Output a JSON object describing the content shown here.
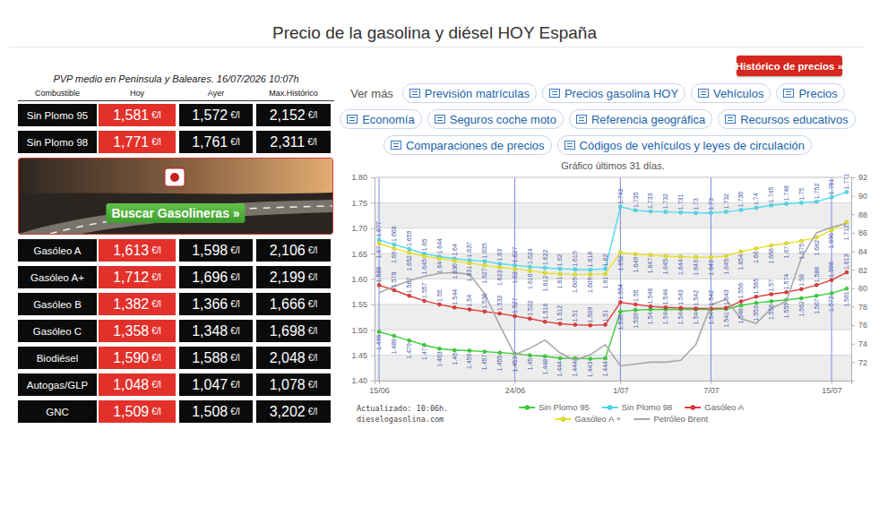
{
  "header": {
    "title": "Precio de la gasolina y diésel HOY España"
  },
  "price_table": {
    "caption": "PVP medio en Peninsula y Baleares. 16/07/2026 10:07h",
    "columns": [
      "Combustible",
      "Hoy",
      "Ayer",
      "Max.Histórico"
    ],
    "unit": "€/l",
    "rows": [
      {
        "fuel": "Sin Plomo 95",
        "today": "1,581",
        "yesterday": "1,572",
        "max": "2,152"
      },
      {
        "fuel": "Sin Plomo 98",
        "today": "1,771",
        "yesterday": "1,761",
        "max": "2,311"
      },
      {
        "fuel": "Gasóleo A",
        "today": "1,613",
        "yesterday": "1,598",
        "max": "2,106"
      },
      {
        "fuel": "Gasóleo A+",
        "today": "1,712",
        "yesterday": "1,696",
        "max": "2,199"
      },
      {
        "fuel": "Gasóleo B",
        "today": "1,382",
        "yesterday": "1,366",
        "max": "1,666"
      },
      {
        "fuel": "Gasóleo C",
        "today": "1,358",
        "yesterday": "1,348",
        "max": "1,698"
      },
      {
        "fuel": "Biodiésel",
        "today": "1,590",
        "yesterday": "1,588",
        "max": "2,048"
      },
      {
        "fuel": "Autogas/GLP",
        "today": "1,048",
        "yesterday": "1,047",
        "max": "1,078"
      },
      {
        "fuel": "GNC",
        "today": "1,509",
        "yesterday": "1,508",
        "max": "3,202"
      }
    ]
  },
  "banner": {
    "button": "Buscar Gasolineras »"
  },
  "history_button": "Histórico de precios »",
  "links": {
    "label": "Ver más",
    "rows": [
      [
        "Previsión matrículas",
        "Precios gasolina HOY",
        "Vehículos",
        "Precios"
      ],
      [
        "Economía",
        "Seguros coche moto",
        "Referencia geográfica",
        "Recursos educativos"
      ],
      [
        "Comparaciones de precios",
        "Códigos de vehículos y leyes de circulación"
      ]
    ]
  },
  "chart_data": {
    "type": "line",
    "title": "Gráfico últimos 31 días.",
    "categories": [
      "15/06",
      null,
      null,
      null,
      null,
      null,
      null,
      null,
      null,
      "24/06",
      null,
      null,
      null,
      null,
      null,
      null,
      "1/07",
      null,
      null,
      null,
      null,
      null,
      "7/07",
      null,
      null,
      null,
      null,
      null,
      null,
      null,
      "15/07",
      null
    ],
    "ylim": [
      1.4,
      1.8
    ],
    "yticks": [
      {
        "value": 1.4,
        "label": "1.40"
      },
      1.45,
      {
        "value": 1.5,
        "label": "1.50"
      },
      1.55,
      {
        "value": 1.6,
        "label": "1.60"
      },
      1.65,
      {
        "value": 1.7,
        "label": "1.70"
      },
      1.75,
      {
        "value": 1.8,
        "label": "1.80"
      }
    ],
    "y2lim": [
      70,
      92
    ],
    "y2ticks": [
      72,
      74,
      76,
      78,
      80,
      82,
      84,
      86,
      88,
      90,
      92
    ],
    "grid": true,
    "legend": "bottom",
    "series": [
      {
        "name": "Sin Plomo 95",
        "color": "#3ccf3c",
        "marker": "circle",
        "data_labels": true,
        "values": [
          1.496,
          1.488,
          1.479,
          1.47,
          1.463,
          1.46,
          1.459,
          1.457,
          1.455,
          1.453,
          1.45,
          1.448,
          1.444,
          1.444,
          1.443,
          1.444,
          1.536,
          1.539,
          1.54,
          1.54,
          1.54,
          1.54,
          1.54,
          1.541,
          1.548,
          1.553,
          1.556,
          1.559,
          1.562,
          1.567,
          1.572,
          1.581
        ]
      },
      {
        "name": "Sin Plomo 98",
        "color": "#4fdcee",
        "marker": "circle",
        "data_labels": true,
        "values": [
          1.677,
          1.668,
          1.659,
          1.65,
          1.644,
          1.64,
          1.637,
          1.635,
          1.63,
          1.627,
          1.624,
          1.622,
          1.62,
          1.619,
          1.618,
          1.62,
          1.742,
          1.735,
          1.733,
          1.732,
          1.731,
          1.73,
          1.73,
          1.732,
          1.736,
          1.74,
          1.745,
          1.748,
          1.75,
          1.752,
          1.761,
          1.771
        ]
      },
      {
        "name": "Gasóleo A",
        "color": "#e03b3b",
        "marker": "circle",
        "data_labels": true,
        "values": [
          1.588,
          1.578,
          1.567,
          1.557,
          1.55,
          1.544,
          1.54,
          1.536,
          1.532,
          1.527,
          1.522,
          1.516,
          1.512,
          1.51,
          1.509,
          1.51,
          1.554,
          1.55,
          1.546,
          1.544,
          1.543,
          1.542,
          1.542,
          1.543,
          1.556,
          1.565,
          1.57,
          1.574,
          1.58,
          1.588,
          1.598,
          1.613
        ]
      },
      {
        "name": "Gasóleo A +",
        "color": "#e6e22a",
        "marker": "circle",
        "data_labels": true,
        "values": [
          1.67,
          1.66,
          1.652,
          1.645,
          1.64,
          1.636,
          1.631,
          1.627,
          1.623,
          1.62,
          1.616,
          1.612,
          1.61,
          1.609,
          1.609,
          1.61,
          1.652,
          1.649,
          1.647,
          1.645,
          1.644,
          1.643,
          1.643,
          1.645,
          1.654,
          1.66,
          1.666,
          1.67,
          1.675,
          1.682,
          1.696,
          1.712
        ]
      },
      {
        "name": "Petróleo Brent",
        "color": "#a8a8a8",
        "marker": "none",
        "data_labels": false,
        "axis": "y2",
        "values": [
          79.5,
          80.2,
          80.8,
          81.3,
          81.6,
          81.7,
          81.5,
          79.4,
          76.0,
          72.8,
          73.5,
          74.4,
          73.0,
          72.2,
          72.8,
          73.9,
          71.6,
          71.8,
          72.0,
          72.0,
          72.2,
          73.9,
          78.2,
          78.8,
          76.7,
          76.2,
          77.8,
          78.6,
          83.3,
          86.0,
          86.6,
          87.0
        ]
      }
    ]
  },
  "chart_footer": {
    "updated": "Actualizado: 10:06h.",
    "source": "dieselogasolina.com"
  }
}
